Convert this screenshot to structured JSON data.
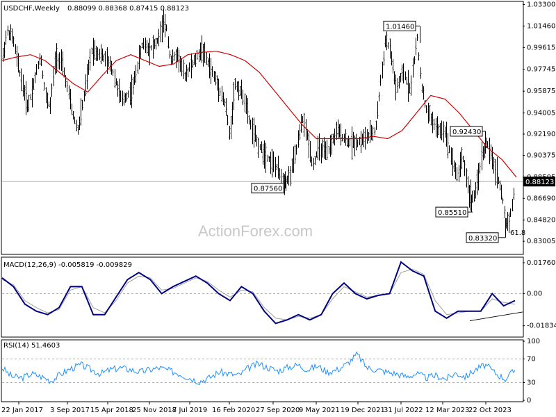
{
  "header": {
    "symbol": "USDCHF,Weekly",
    "ohlc": "0.88099 0.88368 0.87415 0.88123"
  },
  "watermark": "ActionForex.com",
  "colors": {
    "price_bars": "#000000",
    "moving_average": "#cc0000",
    "macd_line": "#000080",
    "macd_signal": "#a0a0a0",
    "rsi_line": "#1e90ff",
    "grid": "#b0b0b0"
  },
  "chart_data": [
    {
      "type": "bar",
      "name": "price",
      "style": "ohlc",
      "title": "USDCHF,Weekly",
      "ylim": [
        0.82,
        1.0345
      ],
      "y_ticks": [
        "1.03300",
        "1.01460",
        "0.99615",
        "0.97745",
        "0.95875",
        "0.94005",
        "0.92190",
        "0.90375",
        "0.88505",
        "0.86690",
        "0.84820",
        "0.83005"
      ],
      "x_ticks": [
        "22 Jan 2017",
        "3 Sep 2017",
        "15 Apr 2018",
        "25 Nov 2018",
        "7 Jul 2019",
        "16 Feb 2020",
        "27 Sep 2020",
        "9 May 2021",
        "19 Dec 2021",
        "31 Jul 2022",
        "12 Mar 2023",
        "22 Oct 2023"
      ],
      "current_price": 0.88123,
      "current_price_label": "0.88123",
      "ma_y": [
        0.985,
        0.988,
        0.99,
        0.985,
        0.975,
        0.965,
        0.958,
        0.972,
        0.985,
        0.99,
        0.985,
        0.98,
        0.982,
        0.99,
        0.992,
        0.993,
        0.99,
        0.985,
        0.975,
        0.96,
        0.945,
        0.93,
        0.918,
        0.918,
        0.918,
        0.918,
        0.92,
        0.918,
        0.925,
        0.94,
        0.955,
        0.952,
        0.94,
        0.925,
        0.91,
        0.9,
        0.885
      ],
      "annotations": [
        {
          "label": "1.01460",
          "value": 1.0146
        },
        {
          "label": "0.87560",
          "value": 0.8756
        },
        {
          "label": "0.92430",
          "value": 0.9243
        },
        {
          "label": "0.85510",
          "value": 0.8551
        },
        {
          "label": "0.83320",
          "value": 0.8332
        },
        {
          "label": "61.8",
          "value": 0.8332
        }
      ]
    },
    {
      "type": "line",
      "name": "MACD",
      "title": "MACD(12,26,9) -0.005819 -0.009829",
      "ylim": [
        -0.024,
        0.02
      ],
      "y_ticks": [
        "0.017603",
        "0.00",
        "-0.01834"
      ],
      "macd_y": [
        0.009,
        0.004,
        -0.006,
        -0.01,
        -0.012,
        -0.008,
        0.004,
        0.004,
        -0.012,
        -0.012,
        -0.002,
        0.008,
        0.012,
        0.008,
        0.0,
        0.004,
        0.007,
        0.01,
        0.006,
        0.0,
        -0.004,
        0.004,
        0.0,
        -0.01,
        -0.017,
        -0.015,
        -0.012,
        -0.015,
        -0.012,
        0.0,
        0.006,
        0.0,
        -0.003,
        -0.001,
        0.0,
        0.018,
        0.013,
        0.01,
        -0.01,
        -0.014,
        -0.01,
        -0.01,
        -0.01,
        0.0,
        -0.007,
        -0.004
      ],
      "signal_y": [
        0.008,
        0.005,
        -0.004,
        -0.008,
        -0.011,
        -0.009,
        0.002,
        0.004,
        -0.008,
        -0.011,
        -0.004,
        0.006,
        0.01,
        0.009,
        0.002,
        0.003,
        0.006,
        0.009,
        0.007,
        0.002,
        -0.002,
        0.002,
        0.001,
        -0.008,
        -0.014,
        -0.015,
        -0.013,
        -0.014,
        -0.012,
        -0.003,
        0.004,
        0.001,
        -0.002,
        -0.001,
        0.0,
        0.012,
        0.014,
        0.011,
        -0.004,
        -0.012,
        -0.011,
        -0.01,
        -0.01,
        -0.003,
        -0.005,
        -0.006
      ]
    },
    {
      "type": "line",
      "name": "RSI",
      "title": "RSI(14) 51.4603",
      "ylim": [
        0,
        100
      ],
      "y_ticks": [
        "100",
        "70",
        "30",
        "0"
      ],
      "y_levels": [
        100,
        70,
        30,
        0
      ],
      "rsi_y": [
        55,
        40,
        38,
        45,
        40,
        33,
        45,
        54,
        60,
        52,
        45,
        52,
        55,
        52,
        48,
        52,
        55,
        50,
        45,
        38,
        32,
        38,
        48,
        45,
        42,
        55,
        62,
        55,
        50,
        56,
        60,
        52,
        58,
        48,
        52,
        62,
        78,
        55,
        52,
        48,
        45,
        40,
        45,
        38,
        42,
        36,
        46,
        40,
        52,
        60,
        46,
        36,
        51
      ]
    }
  ]
}
